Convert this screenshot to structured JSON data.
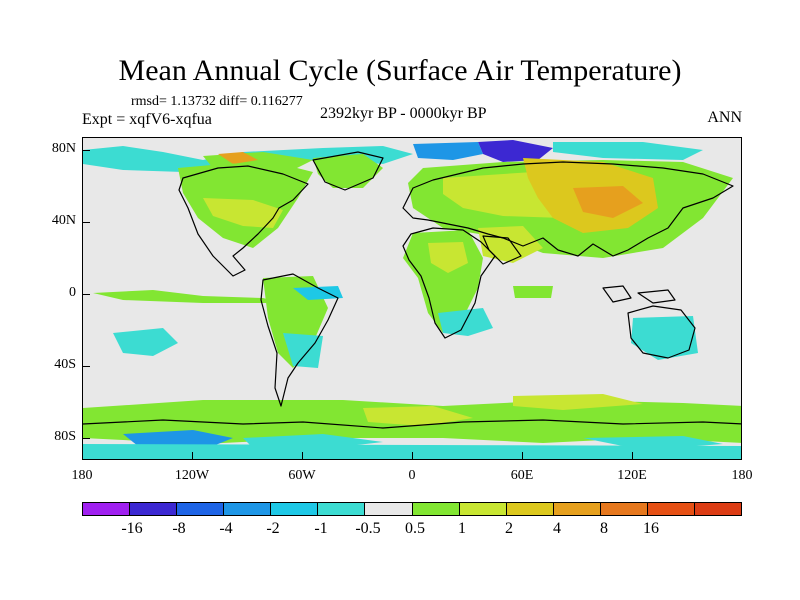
{
  "title": "Mean Annual Cycle (Surface Air Temperature)",
  "stats": "rmsd= 1.13732 diff= 0.116277",
  "experiment": "Expt = xqfV6-xqfua",
  "period": "2392kyr BP - 0000kyr BP",
  "season": "ANN",
  "y_axis": {
    "labels": [
      "80N",
      "40N",
      "0",
      "40S",
      "80S"
    ],
    "values": [
      80,
      40,
      0,
      -40,
      -80
    ]
  },
  "x_axis": {
    "labels": [
      "180",
      "120W",
      "60W",
      "0",
      "60E",
      "120E",
      "180"
    ],
    "values": [
      -180,
      -120,
      -60,
      0,
      60,
      120,
      180
    ]
  },
  "colorbar": {
    "colors": [
      "#a020f0",
      "#3c28d2",
      "#1e64e6",
      "#1e96e6",
      "#1ec8e6",
      "#3cdcd2",
      "#e8e8e8",
      "#82e632",
      "#c8e632",
      "#dcc81e",
      "#e6a01e",
      "#e6781e",
      "#e65014",
      "#dc3c14"
    ],
    "labels": [
      "-16",
      "-8",
      "-4",
      "-2",
      "-1",
      "-0.5",
      "0.5",
      "1",
      "2",
      "4",
      "8",
      "16"
    ]
  }
}
